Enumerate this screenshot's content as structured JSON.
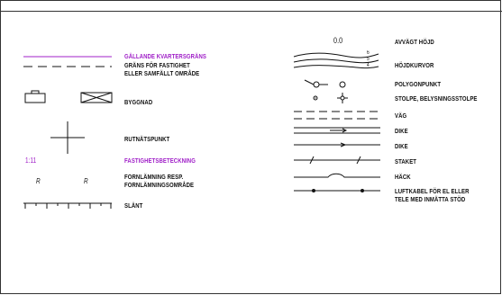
{
  "legend_left": [
    {
      "id": "gallande",
      "label": "GÄLLANDE KVARTERSGRÄNS",
      "accent": true
    },
    {
      "id": "grans",
      "label": "GRÄNS FÖR FASTIGHET\nELLER SAMFÄLLT OMRÅDE",
      "accent": false
    },
    {
      "id": "byggnad",
      "label": "BYGGNAD",
      "accent": false
    },
    {
      "id": "rutnat",
      "label": "RUTNÄTSPUNKT",
      "accent": false
    },
    {
      "id": "fastighet",
      "label": "FASTIGHETSBETECKNING",
      "accent": true
    },
    {
      "id": "fornlamning",
      "label": "FORNLÄMNING RESP.\nFORNLÄMNINGSOMRÅDE",
      "accent": false
    },
    {
      "id": "slant",
      "label": "SLÄNT",
      "accent": false
    }
  ],
  "legend_right": [
    {
      "id": "avvagt",
      "label": "AVVÄGT HÖJD"
    },
    {
      "id": "hojdkurvor",
      "label": "HÖJDKURVOR"
    },
    {
      "id": "polygon",
      "label": "POLYGONPUNKT"
    },
    {
      "id": "stolpe",
      "label": "STOLPE, BELYSNINGSSTOLPE"
    },
    {
      "id": "vag",
      "label": "VÄG"
    },
    {
      "id": "dike1",
      "label": "DIKE"
    },
    {
      "id": "dike2",
      "label": "DIKE"
    },
    {
      "id": "staket",
      "label": "STAKET"
    },
    {
      "id": "hack",
      "label": "HÄCK"
    },
    {
      "id": "luftkabel",
      "label": "LUFTKABEL FÖR EL ELLER\nTELE MED INMÄTTA STÖD"
    }
  ],
  "symbols": {
    "avvagt_value": "0.0",
    "fastighet_code": "1:11",
    "contour_numbers": [
      "6",
      "5",
      "4"
    ],
    "fornlamning_glyph": "R"
  },
  "colors": {
    "accent": "#a020c8",
    "ink": "#111111"
  }
}
